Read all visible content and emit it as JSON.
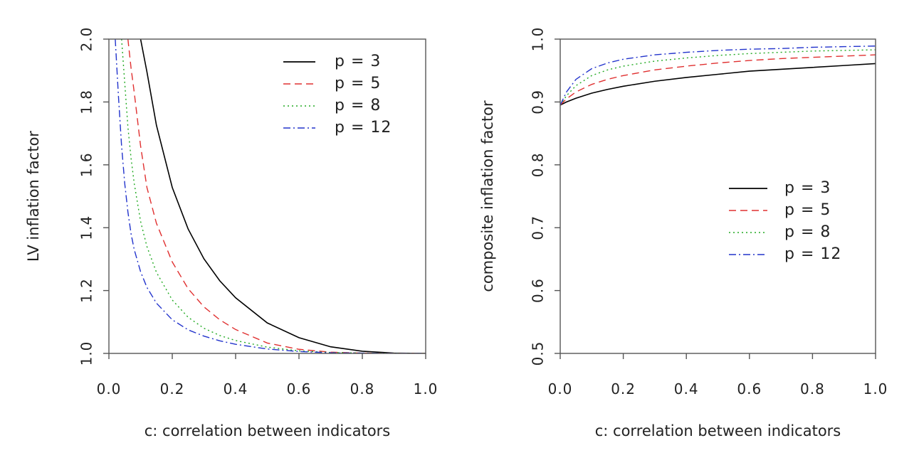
{
  "chart_data": [
    {
      "type": "line",
      "xlabel": "c: correlation between indicators",
      "ylabel": "LV inflation factor",
      "xlim": [
        0,
        1
      ],
      "ylim": [
        1,
        2
      ],
      "xticks": [
        "0.0",
        "0.2",
        "0.4",
        "0.6",
        "0.8",
        "1.0"
      ],
      "yticks": [
        "1.0",
        "1.2",
        "1.4",
        "1.6",
        "1.8",
        "2.0"
      ],
      "legend_position": "top-right",
      "grid": false,
      "x": [
        0.02,
        0.03,
        0.04,
        0.05,
        0.06,
        0.07,
        0.08,
        0.1,
        0.12,
        0.15,
        0.2,
        0.25,
        0.3,
        0.35,
        0.4,
        0.5,
        0.6,
        0.7,
        0.8,
        0.9,
        1.0
      ],
      "series": [
        {
          "name": "p = 3",
          "color": "#000000",
          "dash": "solid",
          "values": [
            null,
            null,
            null,
            null,
            null,
            null,
            null,
            2.0,
            1.896,
            1.726,
            1.528,
            1.396,
            1.301,
            1.231,
            1.177,
            1.097,
            1.05,
            1.021,
            1.007,
            1.001,
            1.0
          ]
        },
        {
          "name": "p = 5",
          "color": "#e03030",
          "dash": "dashed",
          "values": [
            null,
            null,
            null,
            null,
            2.0,
            1.907,
            1.83,
            1.66,
            1.528,
            1.414,
            1.291,
            1.206,
            1.148,
            1.107,
            1.076,
            1.033,
            1.013,
            1.004,
            1.001,
            1.0,
            1.0
          ]
        },
        {
          "name": "p = 8",
          "color": "#22aa22",
          "dash": "dotted",
          "values": [
            null,
            null,
            2.0,
            1.86,
            1.72,
            1.62,
            1.54,
            1.42,
            1.34,
            1.258,
            1.17,
            1.115,
            1.08,
            1.057,
            1.041,
            1.02,
            1.008,
            1.003,
            1.001,
            1.0,
            1.0
          ]
        },
        {
          "name": "p = 12",
          "color": "#2233cc",
          "dash": "dashdot",
          "values": [
            2.0,
            1.82,
            1.66,
            1.54,
            1.45,
            1.38,
            1.33,
            1.26,
            1.21,
            1.16,
            1.107,
            1.075,
            1.055,
            1.04,
            1.029,
            1.014,
            1.006,
            1.002,
            1.001,
            1.0,
            1.0
          ]
        }
      ]
    },
    {
      "type": "line",
      "xlabel": "c: correlation between indicators",
      "ylabel": "composite inflation factor",
      "xlim": [
        0,
        1
      ],
      "ylim": [
        0.5,
        1
      ],
      "xticks": [
        "0.0",
        "0.2",
        "0.4",
        "0.6",
        "0.8",
        "1.0"
      ],
      "yticks": [
        "0.5",
        "0.6",
        "0.7",
        "0.8",
        "0.9",
        "1.0"
      ],
      "legend_position": "center-right",
      "grid": false,
      "x": [
        0,
        0.02,
        0.05,
        0.1,
        0.15,
        0.2,
        0.3,
        0.4,
        0.5,
        0.6,
        0.7,
        0.8,
        0.9,
        1.0
      ],
      "series": [
        {
          "name": "p = 3",
          "color": "#000000",
          "dash": "solid",
          "values": [
            0.895,
            0.9,
            0.906,
            0.914,
            0.92,
            0.925,
            0.933,
            0.939,
            0.944,
            0.949,
            0.952,
            0.955,
            0.958,
            0.961
          ]
        },
        {
          "name": "p = 5",
          "color": "#e03030",
          "dash": "dashed",
          "values": [
            0.895,
            0.905,
            0.916,
            0.928,
            0.936,
            0.942,
            0.951,
            0.957,
            0.962,
            0.966,
            0.969,
            0.971,
            0.973,
            0.975
          ]
        },
        {
          "name": "p = 8",
          "color": "#22aa22",
          "dash": "dotted",
          "values": [
            0.895,
            0.91,
            0.926,
            0.942,
            0.951,
            0.957,
            0.965,
            0.97,
            0.974,
            0.977,
            0.979,
            0.981,
            0.982,
            0.983
          ]
        },
        {
          "name": "p = 12",
          "color": "#2233cc",
          "dash": "dashdot",
          "values": [
            0.895,
            0.916,
            0.936,
            0.953,
            0.962,
            0.968,
            0.975,
            0.979,
            0.982,
            0.984,
            0.985,
            0.987,
            0.988,
            0.989
          ]
        }
      ]
    }
  ]
}
